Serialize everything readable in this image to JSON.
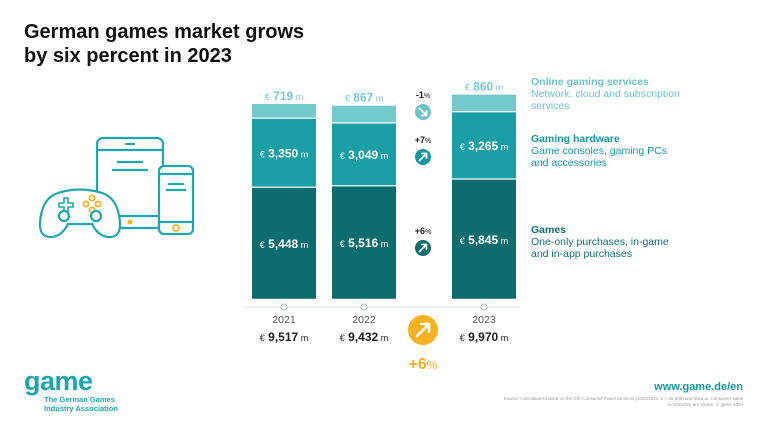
{
  "title": {
    "line1": "German games market grows",
    "line2": "by six percent in 2023"
  },
  "legend": {
    "online": {
      "title": "Online gaming services",
      "desc": "Network, cloud and subscription services"
    },
    "hardware": {
      "title": "Gaming hardware",
      "desc": "Game consoles, gaming PCs and accessories"
    },
    "games": {
      "title": "Games",
      "desc": "One-only purchases, in-game and in-app purchases"
    }
  },
  "footer": {
    "logo": "game",
    "logo_sub": "The German Games Industry Association",
    "website": "www.game.de/en",
    "source": "Source: Calculations based on the GfK Consumer Panel Services (2023/2024, n = 25,000) and Data.ai. Consumer sales in Germany are shown. © game 2024"
  },
  "colors": {
    "online": "#74c9cd",
    "hardware": "#1b9ea6",
    "games": "#0d6c6e",
    "growth_up": "#1597a0",
    "growth_down": "#6cc3c9",
    "total_growth": "#f5b324"
  },
  "chart_data": {
    "type": "bar",
    "stacked": true,
    "unit": "m",
    "currency": "€",
    "categories": [
      "2021",
      "2022",
      "2023"
    ],
    "series": [
      {
        "key": "games",
        "name": "Games",
        "values": [
          5448,
          5516,
          5845
        ],
        "labels": [
          "5,448",
          "5,516",
          "5,845"
        ]
      },
      {
        "key": "hardware",
        "name": "Gaming hardware",
        "values": [
          3350,
          3049,
          3265
        ],
        "labels": [
          "3,350",
          "3,049",
          "3,265"
        ]
      },
      {
        "key": "online",
        "name": "Online gaming services",
        "values": [
          719,
          867,
          860
        ],
        "labels": [
          "719",
          "867",
          "860"
        ]
      }
    ],
    "totals": {
      "values": [
        9517,
        9432,
        9970
      ],
      "labels": [
        "9,517",
        "9,432",
        "9,970"
      ]
    },
    "growth": [
      {
        "series": "online",
        "value": -1,
        "label": "-1",
        "unit": "%",
        "direction": "down"
      },
      {
        "series": "hardware",
        "value": 7,
        "label": "+7",
        "unit": "%",
        "direction": "up"
      },
      {
        "series": "games",
        "value": 6,
        "label": "+6",
        "unit": "%",
        "direction": "up"
      }
    ],
    "total_growth": {
      "value": 6,
      "label": "+6",
      "unit": "%"
    }
  }
}
